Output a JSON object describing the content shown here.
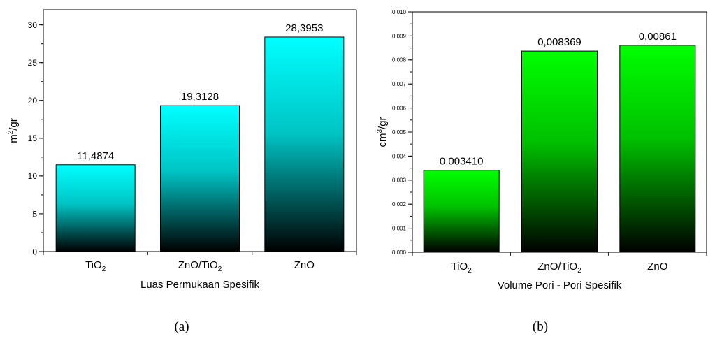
{
  "captions": [
    "(a)",
    "(b)"
  ],
  "chart_data": [
    {
      "type": "bar",
      "title": "",
      "xlabel": "Luas Permukaan Spesifik",
      "ylabel_base": "m",
      "ylabel_sup": "2",
      "ylabel_tail": "/gr",
      "ylim": [
        0,
        32
      ],
      "yticks": [
        0,
        5,
        10,
        15,
        20,
        25,
        30
      ],
      "ytick_labels": [
        "0",
        "5",
        "10",
        "15",
        "20",
        "25",
        "30"
      ],
      "minor_step": 2.5,
      "categories": [
        {
          "base": "TiO",
          "sub": "2",
          "tail": ""
        },
        {
          "base": "ZnO/TiO",
          "sub": "2",
          "tail": ""
        },
        {
          "base": "ZnO",
          "sub": "",
          "tail": ""
        }
      ],
      "values": [
        11.4874,
        19.3128,
        28.3953
      ],
      "data_labels": [
        "11,4874",
        "19,3128",
        "28,3953"
      ],
      "color": "#00ffff",
      "grid": false,
      "legend": "none"
    },
    {
      "type": "bar",
      "title": "",
      "xlabel": "Volume Pori - Pori Spesifik",
      "ylabel_base": "cm",
      "ylabel_sup": "3",
      "ylabel_tail": "/gr",
      "ylim": [
        0,
        0.01
      ],
      "yticks": [
        0,
        0.001,
        0.002,
        0.003,
        0.004,
        0.005,
        0.006,
        0.007,
        0.008,
        0.009,
        0.01
      ],
      "ytick_labels": [
        "0.000",
        "0.001",
        "0.002",
        "0.003",
        "0.004",
        "0.005",
        "0.006",
        "0.007",
        "0.008",
        "0.009",
        "0.010"
      ],
      "minor_step": 0.0005,
      "categories": [
        {
          "base": "TiO",
          "sub": "2",
          "tail": ""
        },
        {
          "base": "ZnO/TiO",
          "sub": "2",
          "tail": ""
        },
        {
          "base": "ZnO",
          "sub": "",
          "tail": ""
        }
      ],
      "values": [
        0.00341,
        0.008369,
        0.00861
      ],
      "data_labels": [
        "0,003410",
        "0,008369",
        "0,00861"
      ],
      "color": "#00ff00",
      "grid": false,
      "legend": "none"
    }
  ]
}
